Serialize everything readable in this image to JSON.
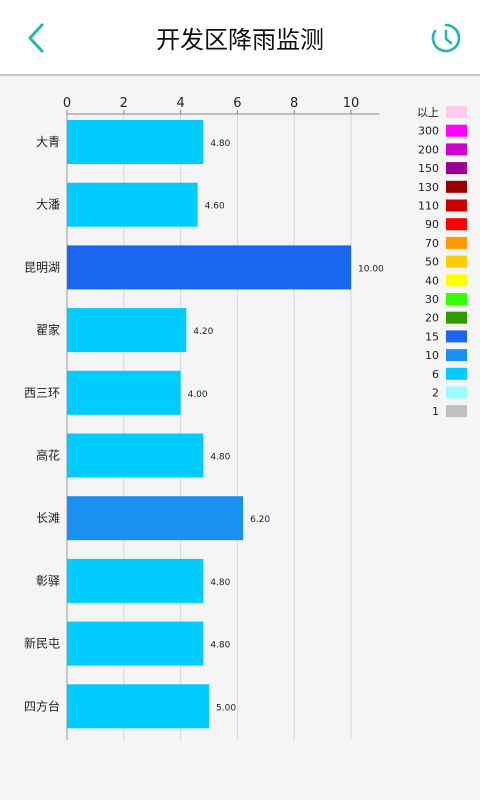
{
  "header": {
    "title": "开发区降雨监测",
    "back_icon": "back-chevron-icon",
    "history_icon": "history-clock-icon",
    "accent_color": "#22b8b0"
  },
  "chart_data": {
    "type": "bar",
    "orientation": "horizontal",
    "x_axis_position": "top",
    "xlim": [
      0,
      11
    ],
    "x_ticks": [
      "0",
      "2",
      "4",
      "6",
      "8",
      "10"
    ],
    "grid": true,
    "categories": [
      "大青",
      "大潘",
      "昆明湖",
      "翟家",
      "西三环",
      "高花",
      "长滩",
      "彰驿",
      "新民屯",
      "四方台"
    ],
    "values": [
      4.8,
      4.6,
      10.0,
      4.2,
      4.0,
      4.8,
      6.2,
      4.8,
      4.8,
      5.0
    ],
    "value_labels": [
      "4.80",
      "4.60",
      "10.00",
      "4.20",
      "4.00",
      "4.80",
      "6.20",
      "4.80",
      "4.80",
      "5.00"
    ],
    "bar_colors": [
      "#00ccff",
      "#00ccff",
      "#1a66f0",
      "#00ccff",
      "#00ccff",
      "#00ccff",
      "#1a90f0",
      "#00ccff",
      "#00ccff",
      "#00ccff"
    ],
    "legend_placement": "right",
    "legend": [
      {
        "label": "以上",
        "color": "#ffccf0"
      },
      {
        "label": "300",
        "color": "#ff00ff"
      },
      {
        "label": "200",
        "color": "#cc00cc"
      },
      {
        "label": "150",
        "color": "#990099"
      },
      {
        "label": "130",
        "color": "#990000"
      },
      {
        "label": "110",
        "color": "#cc0000"
      },
      {
        "label": "90",
        "color": "#ff0000"
      },
      {
        "label": "70",
        "color": "#ff9900"
      },
      {
        "label": "50",
        "color": "#ffcc00"
      },
      {
        "label": "40",
        "color": "#ffff00"
      },
      {
        "label": "30",
        "color": "#33ff00"
      },
      {
        "label": "20",
        "color": "#339900"
      },
      {
        "label": "15",
        "color": "#1a66f0"
      },
      {
        "label": "10",
        "color": "#1a90f0"
      },
      {
        "label": "6",
        "color": "#00ccff"
      },
      {
        "label": "2",
        "color": "#99ffff"
      },
      {
        "label": "1",
        "color": "#c0c0c0"
      }
    ]
  }
}
